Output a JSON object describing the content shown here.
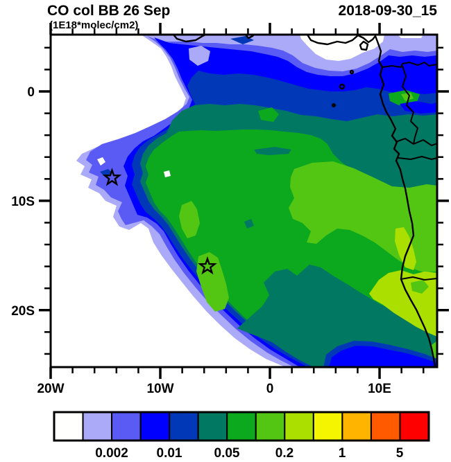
{
  "header": {
    "title": "CO col BB 26 Sep",
    "subtitle": "(1E18*molec/cm2)",
    "timestamp": "2018-09-30_15"
  },
  "chart_data": {
    "type": "heatmap",
    "subtype": "filled_contour_map",
    "title": "CO col BB 26 Sep",
    "units": "1E18*molec/cm2",
    "timestamp": "2018-09-30_15",
    "region": "South Atlantic / West Africa",
    "lon_range_deg": [
      -20,
      15.25
    ],
    "lat_range_deg": [
      -25.2,
      5.2
    ],
    "x_tick_labels": [
      "20W",
      "10W",
      "0",
      "10E"
    ],
    "x_tick_lons": [
      -20,
      -10,
      0,
      10
    ],
    "x_minor_tick_lons": [
      -18,
      -16,
      -14,
      -12,
      -8,
      -6,
      -4,
      -2,
      2,
      4,
      6,
      8,
      12,
      14
    ],
    "y_tick_labels": [
      "0",
      "10S",
      "20S"
    ],
    "y_tick_lats": [
      0,
      -10,
      -20
    ],
    "y_minor_tick_lats": [
      4,
      2,
      -2,
      -4,
      -6,
      -8,
      -12,
      -14,
      -16,
      -18,
      -22,
      -24
    ],
    "palette": [
      "#FFFFFE",
      "#AAAAF8",
      "#5A5AF5",
      "#0000FF",
      "#0038B8",
      "#007862",
      "#0CA81E",
      "#52C613",
      "#AADF00",
      "#F5F500",
      "#FFB400",
      "#FF5A00",
      "#FF0000"
    ],
    "colorbar_labels": [
      "0.002",
      "0.01",
      "0.05",
      "0.2",
      "1",
      "5"
    ],
    "colorbar_label_boundary_indices": [
      2,
      4,
      6,
      8,
      10,
      12
    ],
    "legend_position": "bottom",
    "grid": false,
    "markers": [
      {
        "symbol": "star",
        "lon": -14.4,
        "lat": -7.9
      },
      {
        "symbol": "star",
        "lon": -5.7,
        "lat": -16.0
      }
    ],
    "features": [
      "africa-coastline",
      "country-borders",
      "gulf-of-guinea-islands"
    ]
  }
}
